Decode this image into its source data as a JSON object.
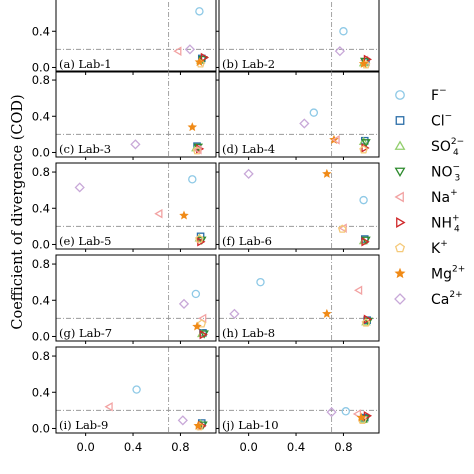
{
  "chart_data": {
    "type": "scatter",
    "ylabel": "Coefficient of divergence (COD)",
    "xticks": [
      "0.0",
      "0.4",
      "0.8"
    ],
    "yticks": [
      "0.0",
      "0.4",
      "0.8"
    ],
    "xlim": [
      -0.25,
      1.1
    ],
    "ylim": [
      -0.05,
      0.9
    ],
    "thresholds": {
      "x": 0.7,
      "y": 0.2
    },
    "legend": [
      {
        "key": "F",
        "base": "F",
        "sub": "",
        "sup": "−",
        "marker": "circle",
        "color": "#8ec9e6"
      },
      {
        "key": "Cl",
        "base": "Cl",
        "sub": "",
        "sup": "−",
        "marker": "square",
        "color": "#2b6ea8"
      },
      {
        "key": "SO4",
        "base": "SO",
        "sub": "4",
        "sup": "2−",
        "marker": "triangle-up",
        "color": "#93cf6e"
      },
      {
        "key": "NO3",
        "base": "NO",
        "sub": "3",
        "sup": "−",
        "marker": "triangle-down",
        "color": "#2e8b2e"
      },
      {
        "key": "Na",
        "base": "Na",
        "sub": "",
        "sup": "+",
        "marker": "triangle-left",
        "color": "#f2a3a3"
      },
      {
        "key": "NH4",
        "base": "NH",
        "sub": "4",
        "sup": "+",
        "marker": "triangle-right",
        "color": "#d0282a"
      },
      {
        "key": "K",
        "base": "K",
        "sub": "",
        "sup": "+",
        "marker": "pentagon",
        "color": "#f5c979"
      },
      {
        "key": "Mg",
        "base": "Mg",
        "sub": "",
        "sup": "2+",
        "marker": "star",
        "color": "#f08a16"
      },
      {
        "key": "Ca",
        "base": "Ca",
        "sub": "",
        "sup": "2+",
        "marker": "diamond",
        "color": "#c8a8d8"
      }
    ],
    "panels": [
      {
        "label": "(a) Lab-1",
        "points": [
          {
            "ion": "F",
            "x": 0.96,
            "y": 0.62
          },
          {
            "ion": "Na",
            "x": 0.78,
            "y": 0.18
          },
          {
            "ion": "Ca",
            "x": 0.88,
            "y": 0.2
          },
          {
            "ion": "Cl",
            "x": 0.98,
            "y": 0.1
          },
          {
            "ion": "SO4",
            "x": 0.97,
            "y": 0.08
          },
          {
            "ion": "NO3",
            "x": 0.99,
            "y": 0.09
          },
          {
            "ion": "NH4",
            "x": 1.0,
            "y": 0.11
          },
          {
            "ion": "K",
            "x": 0.97,
            "y": 0.04
          },
          {
            "ion": "Mg",
            "x": 0.96,
            "y": 0.06
          }
        ]
      },
      {
        "label": "(b) Lab-2",
        "points": [
          {
            "ion": "F",
            "x": 0.8,
            "y": 0.4
          },
          {
            "ion": "Ca",
            "x": 0.77,
            "y": 0.18
          },
          {
            "ion": "Na",
            "x": 0.98,
            "y": 0.08
          },
          {
            "ion": "Cl",
            "x": 0.99,
            "y": 0.06
          },
          {
            "ion": "SO4",
            "x": 0.97,
            "y": 0.05
          },
          {
            "ion": "NO3",
            "x": 0.98,
            "y": 0.07
          },
          {
            "ion": "NH4",
            "x": 1.0,
            "y": 0.09
          },
          {
            "ion": "K",
            "x": 0.99,
            "y": 0.03
          },
          {
            "ion": "Mg",
            "x": 0.97,
            "y": 0.04
          }
        ]
      },
      {
        "label": "(c) Lab-3",
        "points": [
          {
            "ion": "Mg",
            "x": 0.9,
            "y": 0.28
          },
          {
            "ion": "Ca",
            "x": 0.42,
            "y": 0.09
          },
          {
            "ion": "Cl",
            "x": 0.94,
            "y": 0.07
          },
          {
            "ion": "SO4",
            "x": 0.93,
            "y": 0.05
          },
          {
            "ion": "NO3",
            "x": 0.95,
            "y": 0.06
          },
          {
            "ion": "NH4",
            "x": 0.96,
            "y": 0.04
          },
          {
            "ion": "K",
            "x": 0.94,
            "y": 0.02
          },
          {
            "ion": "Na",
            "x": 0.95,
            "y": 0.03
          }
        ]
      },
      {
        "label": "(d) Lab-4",
        "points": [
          {
            "ion": "F",
            "x": 0.55,
            "y": 0.44
          },
          {
            "ion": "Ca",
            "x": 0.47,
            "y": 0.32
          },
          {
            "ion": "Mg",
            "x": 0.72,
            "y": 0.14
          },
          {
            "ion": "Na",
            "x": 0.74,
            "y": 0.14
          },
          {
            "ion": "Cl",
            "x": 0.98,
            "y": 0.13
          },
          {
            "ion": "SO4",
            "x": 0.97,
            "y": 0.12
          },
          {
            "ion": "NO3",
            "x": 0.99,
            "y": 0.11
          },
          {
            "ion": "NH4",
            "x": 0.98,
            "y": 0.05
          },
          {
            "ion": "K",
            "x": 0.97,
            "y": 0.03
          }
        ]
      },
      {
        "label": "(e) Lab-5",
        "points": [
          {
            "ion": "Ca",
            "x": -0.05,
            "y": 0.63
          },
          {
            "ion": "F",
            "x": 0.9,
            "y": 0.72
          },
          {
            "ion": "Na",
            "x": 0.62,
            "y": 0.34
          },
          {
            "ion": "Mg",
            "x": 0.83,
            "y": 0.32
          },
          {
            "ion": "Cl",
            "x": 0.97,
            "y": 0.09
          },
          {
            "ion": "SO4",
            "x": 0.96,
            "y": 0.07
          },
          {
            "ion": "NO3",
            "x": 0.98,
            "y": 0.05
          },
          {
            "ion": "NH4",
            "x": 0.97,
            "y": 0.03
          },
          {
            "ion": "K",
            "x": 0.96,
            "y": 0.06
          }
        ]
      },
      {
        "label": "(f) Lab-6",
        "points": [
          {
            "ion": "Ca",
            "x": 0.0,
            "y": 0.78
          },
          {
            "ion": "Mg",
            "x": 0.66,
            "y": 0.78
          },
          {
            "ion": "F",
            "x": 0.97,
            "y": 0.49
          },
          {
            "ion": "Na",
            "x": 0.8,
            "y": 0.18
          },
          {
            "ion": "K",
            "x": 0.79,
            "y": 0.17
          },
          {
            "ion": "Cl",
            "x": 0.98,
            "y": 0.06
          },
          {
            "ion": "SO4",
            "x": 0.97,
            "y": 0.04
          },
          {
            "ion": "NO3",
            "x": 0.99,
            "y": 0.05
          },
          {
            "ion": "NH4",
            "x": 0.98,
            "y": 0.03
          }
        ]
      },
      {
        "label": "(g) Lab-7",
        "points": [
          {
            "ion": "F",
            "x": 0.93,
            "y": 0.47
          },
          {
            "ion": "Ca",
            "x": 0.83,
            "y": 0.36
          },
          {
            "ion": "Na",
            "x": 0.99,
            "y": 0.2
          },
          {
            "ion": "K",
            "x": 0.98,
            "y": 0.14
          },
          {
            "ion": "Mg",
            "x": 0.94,
            "y": 0.11
          },
          {
            "ion": "Cl",
            "x": 0.99,
            "y": 0.04
          },
          {
            "ion": "SO4",
            "x": 0.98,
            "y": 0.03
          },
          {
            "ion": "NO3",
            "x": 1.0,
            "y": 0.03
          },
          {
            "ion": "NH4",
            "x": 0.99,
            "y": 0.02
          }
        ]
      },
      {
        "label": "(h) Lab-8",
        "points": [
          {
            "ion": "F",
            "x": 0.1,
            "y": 0.6
          },
          {
            "ion": "Ca",
            "x": -0.12,
            "y": 0.25
          },
          {
            "ion": "Na",
            "x": 0.93,
            "y": 0.51
          },
          {
            "ion": "Mg",
            "x": 0.66,
            "y": 0.25
          },
          {
            "ion": "Cl",
            "x": 1.0,
            "y": 0.18
          },
          {
            "ion": "SO4",
            "x": 0.99,
            "y": 0.16
          },
          {
            "ion": "NO3",
            "x": 1.01,
            "y": 0.17
          },
          {
            "ion": "NH4",
            "x": 1.0,
            "y": 0.19
          },
          {
            "ion": "K",
            "x": 0.99,
            "y": 0.15
          }
        ]
      },
      {
        "label": "(i) Lab-9",
        "points": [
          {
            "ion": "F",
            "x": 0.43,
            "y": 0.43
          },
          {
            "ion": "Na",
            "x": 0.2,
            "y": 0.24
          },
          {
            "ion": "Ca",
            "x": 0.82,
            "y": 0.09
          },
          {
            "ion": "Cl",
            "x": 0.98,
            "y": 0.06
          },
          {
            "ion": "SO4",
            "x": 0.97,
            "y": 0.05
          },
          {
            "ion": "NO3",
            "x": 0.99,
            "y": 0.04
          },
          {
            "ion": "NH4",
            "x": 0.98,
            "y": 0.03
          },
          {
            "ion": "K",
            "x": 0.96,
            "y": 0.02
          },
          {
            "ion": "Mg",
            "x": 0.95,
            "y": 0.03
          }
        ]
      },
      {
        "label": "(j) Lab-10",
        "points": [
          {
            "ion": "Ca",
            "x": 0.7,
            "y": 0.18
          },
          {
            "ion": "F",
            "x": 0.82,
            "y": 0.19
          },
          {
            "ion": "Na",
            "x": 0.92,
            "y": 0.16
          },
          {
            "ion": "Cl",
            "x": 0.98,
            "y": 0.12
          },
          {
            "ion": "SO4",
            "x": 0.97,
            "y": 0.1
          },
          {
            "ion": "NO3",
            "x": 0.99,
            "y": 0.11
          },
          {
            "ion": "NH4",
            "x": 1.0,
            "y": 0.14
          },
          {
            "ion": "K",
            "x": 0.96,
            "y": 0.09
          },
          {
            "ion": "Mg",
            "x": 0.95,
            "y": 0.12
          }
        ]
      }
    ]
  }
}
